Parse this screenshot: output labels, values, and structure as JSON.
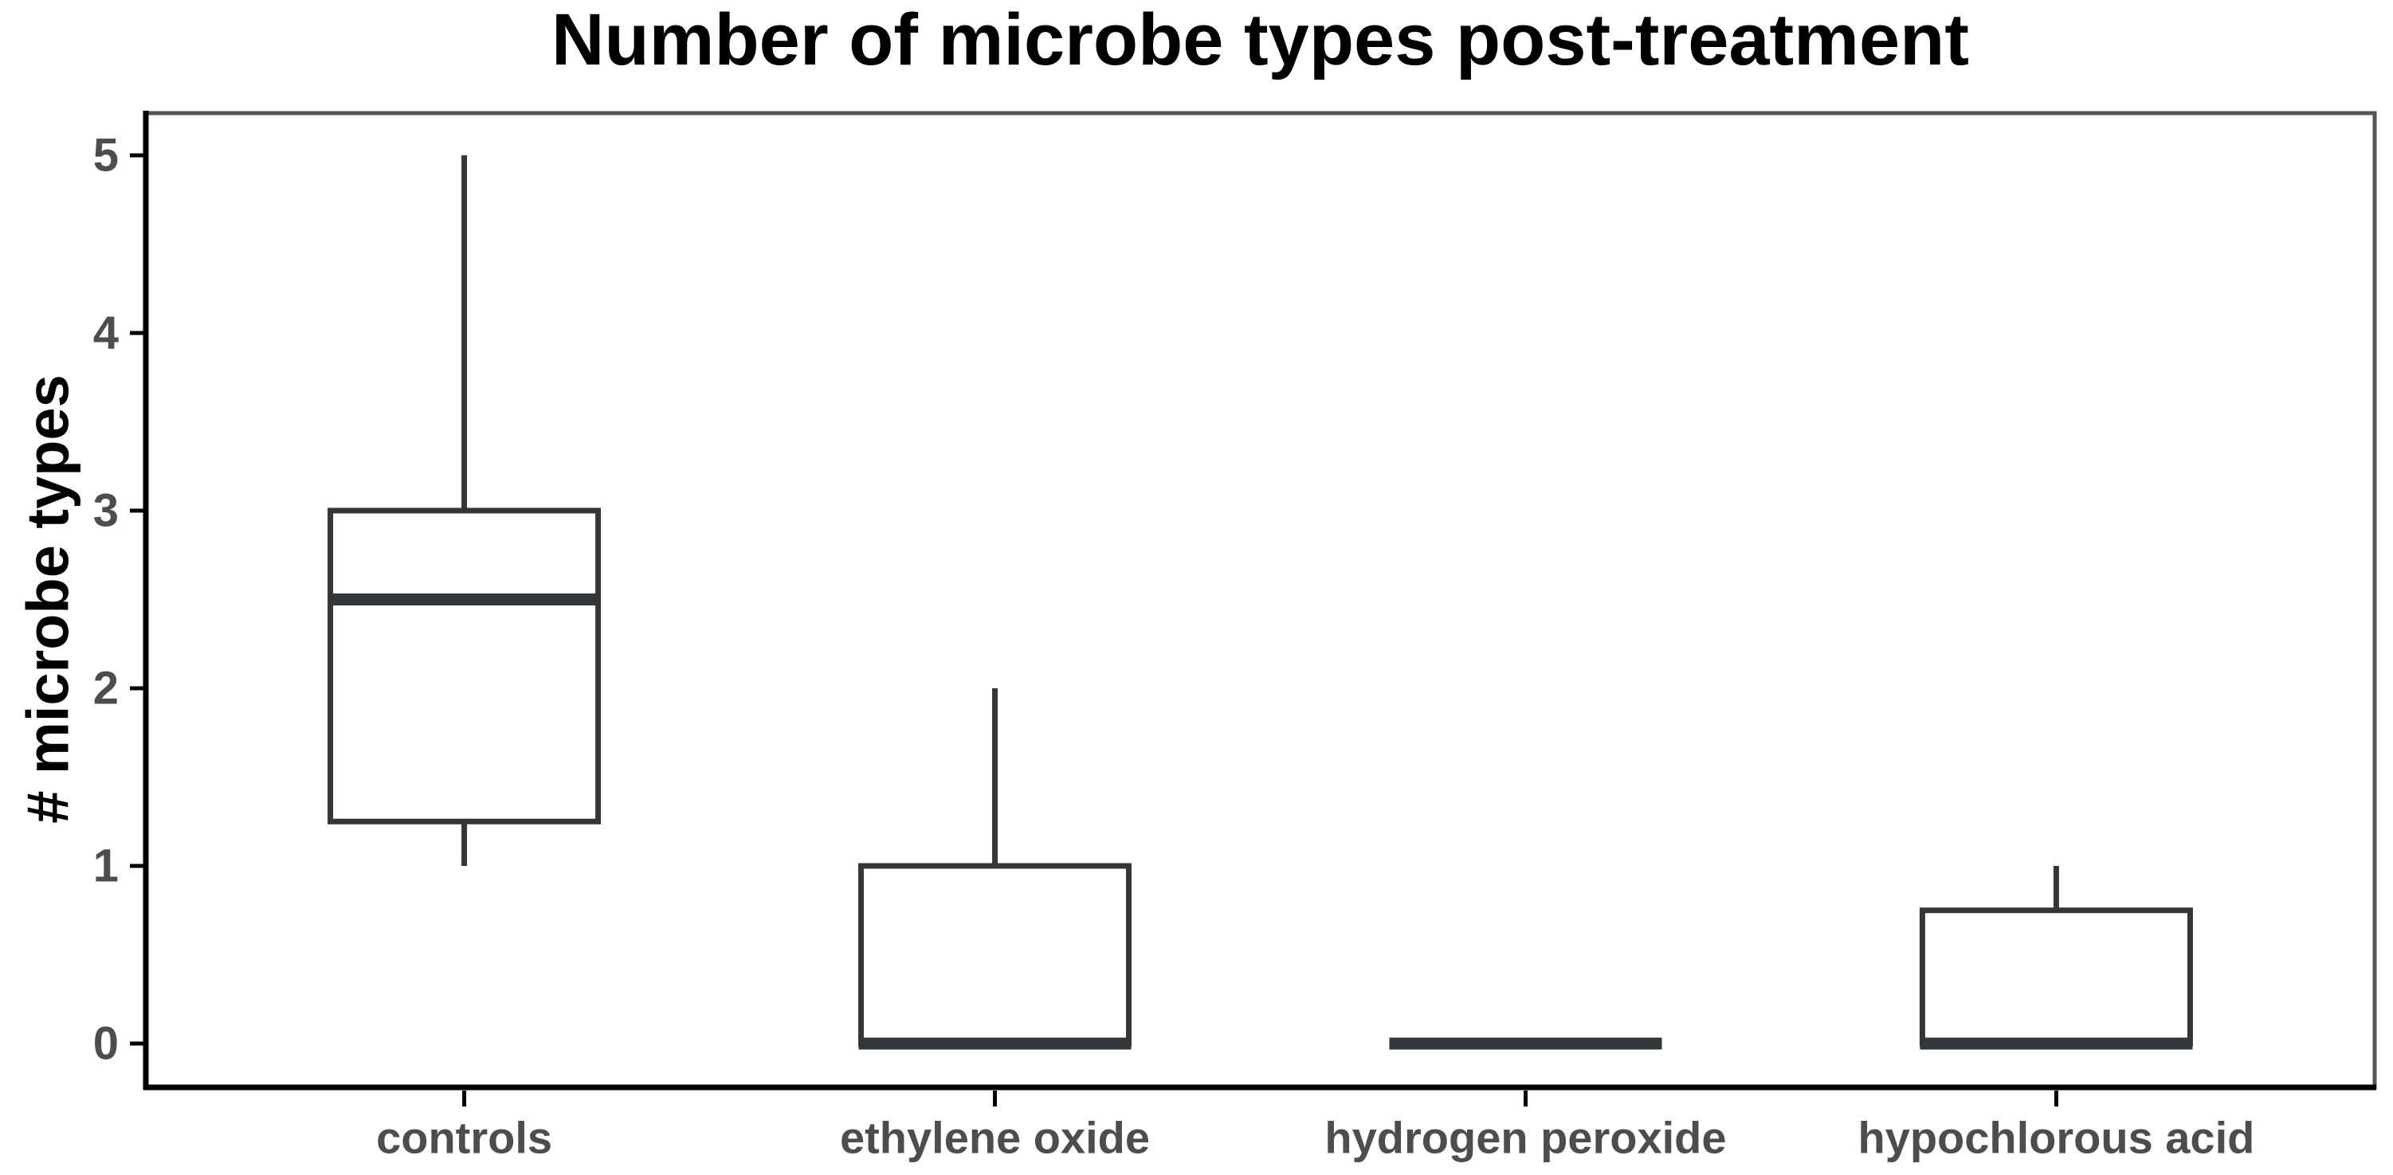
{
  "chart_data": {
    "type": "box",
    "title": "Number of microbe types post-treatment",
    "ylabel": "# microbe types",
    "xlabel": "",
    "categories": [
      "controls",
      "ethylene oxide",
      "hydrogen peroxide",
      "hypochlorous acid"
    ],
    "yticks": [
      0,
      1,
      2,
      3,
      4,
      5
    ],
    "ylim": [
      -0.25,
      5.25
    ],
    "grid": false,
    "legend": false,
    "boxes": [
      {
        "category": "controls",
        "whisker_low": 1,
        "q1": 1.25,
        "median": 2.5,
        "q3": 3,
        "whisker_high": 5
      },
      {
        "category": "ethylene oxide",
        "whisker_low": 0,
        "q1": 0,
        "median": 0,
        "q3": 1,
        "whisker_high": 2
      },
      {
        "category": "hydrogen peroxide",
        "whisker_low": 0,
        "q1": 0,
        "median": 0,
        "q3": 0,
        "whisker_high": 0
      },
      {
        "category": "hypochlorous acid",
        "whisker_low": 0,
        "q1": 0,
        "median": 0,
        "q3": 0.75,
        "whisker_high": 1
      }
    ],
    "colors": {
      "box_stroke": "#33373A",
      "box_fill": "#FFFFFF",
      "axis_text": "#4D4D4D",
      "title_text": "#000000",
      "axis_line": "#000000",
      "panel_border": "#555555",
      "background": "#FFFFFF"
    }
  }
}
